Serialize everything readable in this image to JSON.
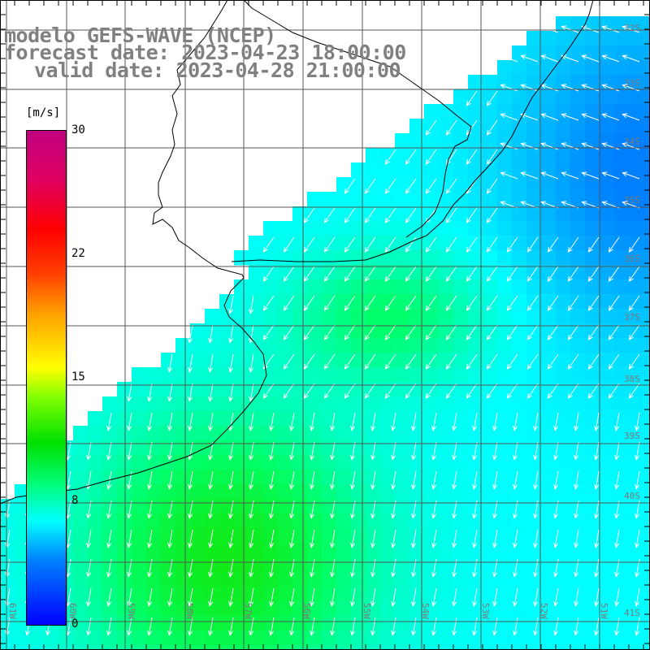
{
  "title": {
    "line1": "modelo GEFS-WAVE (NCEP)",
    "line2": "forecast date: 2023-04-23 18:00:00",
    "line3": "valid date: 2023-04-28 21:00:00"
  },
  "colorbar": {
    "unit": "[m/s]",
    "min": 0,
    "max": 30,
    "labels": [
      "30",
      "22",
      "15",
      "8",
      "0"
    ],
    "colors": [
      "#0000ff",
      "#0080ff",
      "#00ffff",
      "#00ff80",
      "#00e000",
      "#80ff00",
      "#ffff00",
      "#ffa000",
      "#ff4000",
      "#ff0000",
      "#c00080"
    ]
  },
  "grid": {
    "lat_labels": [
      "32S",
      "33S",
      "34S",
      "35S",
      "36S",
      "37S",
      "38S",
      "39S",
      "40S",
      "41S"
    ],
    "lon_labels": [
      "61W",
      "60W",
      "59W",
      "58W",
      "57W",
      "56W",
      "55W",
      "54W",
      "53W",
      "52W",
      "51W"
    ]
  },
  "colors": {
    "land": "#ffffff",
    "coast": "#000000",
    "grid": "#555555",
    "arrows": "#ffffff",
    "text": "#808080"
  }
}
